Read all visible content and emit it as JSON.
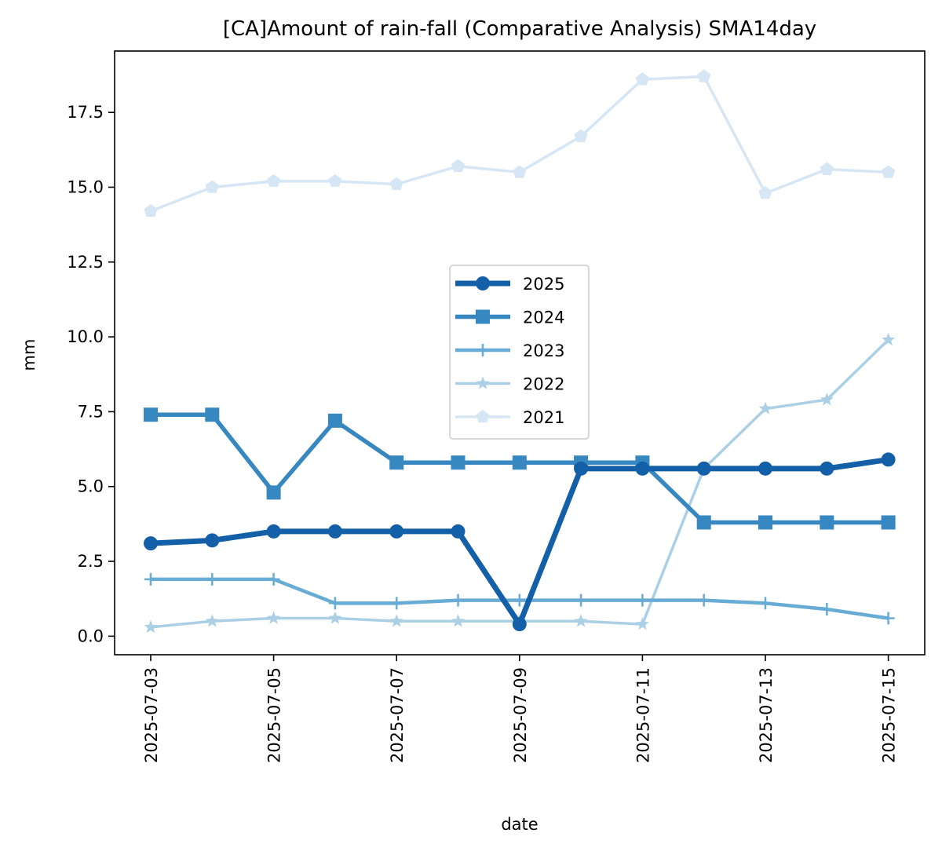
{
  "chart_data": {
    "type": "line",
    "title": "[CA]Amount of rain-fall (Comparative Analysis) SMA14day",
    "xlabel": "date",
    "ylabel": "mm",
    "x": [
      "2025-07-03",
      "2025-07-04",
      "2025-07-05",
      "2025-07-06",
      "2025-07-07",
      "2025-07-08",
      "2025-07-09",
      "2025-07-10",
      "2025-07-11",
      "2025-07-12",
      "2025-07-13",
      "2025-07-14",
      "2025-07-15"
    ],
    "x_tick_labels": [
      "2025-07-03",
      "2025-07-05",
      "2025-07-07",
      "2025-07-09",
      "2025-07-11",
      "2025-07-13",
      "2025-07-15"
    ],
    "ylim": [
      -0.62,
      19.55
    ],
    "y_ticks": [
      0.0,
      2.5,
      5.0,
      7.5,
      10.0,
      12.5,
      15.0,
      17.5
    ],
    "y_tick_labels": [
      "0.0",
      "2.5",
      "5.0",
      "7.5",
      "10.0",
      "12.5",
      "15.0",
      "17.5"
    ],
    "grid": false,
    "legend_position": "center",
    "series": [
      {
        "name": "2025",
        "color": "#1460a8",
        "marker": "circle",
        "line_width": 7,
        "values": [
          3.1,
          3.2,
          3.5,
          3.5,
          3.5,
          3.5,
          0.4,
          5.6,
          5.6,
          5.6,
          5.6,
          5.6,
          5.9
        ]
      },
      {
        "name": "2024",
        "color": "#3787c0",
        "marker": "square",
        "line_width": 5.5,
        "values": [
          7.4,
          7.4,
          4.8,
          7.2,
          5.8,
          5.8,
          5.8,
          5.8,
          5.8,
          3.8,
          3.8,
          3.8,
          3.8
        ]
      },
      {
        "name": "2023",
        "color": "#68acd5",
        "marker": "plus",
        "line_width": 4.5,
        "values": [
          1.9,
          1.9,
          1.9,
          1.1,
          1.1,
          1.2,
          1.2,
          1.2,
          1.2,
          1.2,
          1.1,
          0.9,
          0.6
        ]
      },
      {
        "name": "2022",
        "color": "#abd0e6",
        "marker": "star",
        "line_width": 3.5,
        "values": [
          0.3,
          0.5,
          0.6,
          0.6,
          0.5,
          0.5,
          0.5,
          0.5,
          0.4,
          5.6,
          7.6,
          7.9,
          9.9
        ]
      },
      {
        "name": "2021",
        "color": "#d6e6f4",
        "marker": "pentagon",
        "line_width": 3.5,
        "values": [
          14.2,
          15.0,
          15.2,
          15.2,
          15.1,
          15.7,
          15.5,
          16.7,
          18.6,
          18.7,
          14.8,
          15.6,
          15.5
        ]
      }
    ]
  }
}
